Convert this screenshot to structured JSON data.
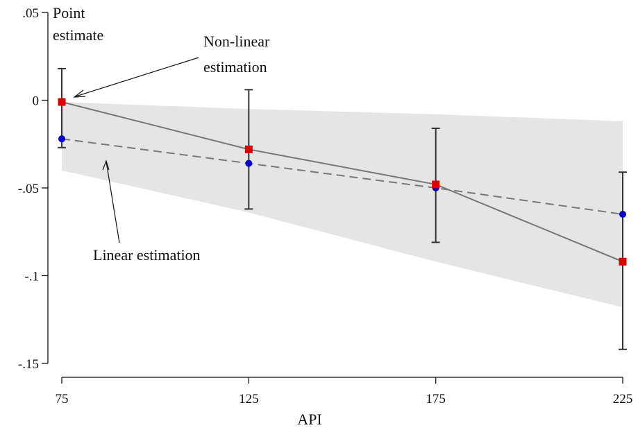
{
  "chart_data": {
    "type": "line",
    "x": [
      75,
      125,
      175,
      225
    ],
    "xlabel": "API",
    "ylabel_lines": [
      "Point",
      "estimate"
    ],
    "x_ticks": [
      {
        "value": 75,
        "label": "75"
      },
      {
        "value": 125,
        "label": "125"
      },
      {
        "value": 175,
        "label": "175"
      },
      {
        "value": 225,
        "label": "225"
      }
    ],
    "y_ticks": [
      {
        "value": 0.05,
        "label": ".05"
      },
      {
        "value": 0,
        "label": "0"
      },
      {
        "value": -0.05,
        "label": "-.05"
      },
      {
        "value": -0.1,
        "label": "-.1"
      },
      {
        "value": -0.15,
        "label": "-.15"
      }
    ],
    "xlim": [
      75,
      225
    ],
    "ylim": [
      -0.15,
      0.05
    ],
    "grid": false,
    "series": [
      {
        "key": "nonlinear",
        "style": "solid",
        "marker": "square",
        "color": "#dd0000",
        "line_color": "#777777",
        "values": [
          -0.001,
          -0.028,
          -0.048,
          -0.092
        ],
        "ci_low": [
          -0.027,
          -0.062,
          -0.081,
          -0.142
        ],
        "ci_high": [
          0.018,
          0.006,
          -0.016,
          -0.041
        ]
      },
      {
        "key": "linear",
        "style": "dashed",
        "marker": "circle",
        "color": "#0000cc",
        "line_color": "#777777",
        "values": [
          -0.022,
          -0.036,
          -0.05,
          -0.065
        ],
        "band_low": [
          -0.04,
          -0.064,
          -0.092,
          -0.118
        ],
        "band_high": [
          -0.001,
          -0.005,
          -0.008,
          -0.012
        ]
      }
    ],
    "band_color": "#e5e5e5",
    "annotations": [
      {
        "key": "nonlinear",
        "lines": [
          "Non-linear",
          "estimation"
        ]
      },
      {
        "key": "linear",
        "lines": [
          "Linear estimation"
        ]
      }
    ]
  }
}
